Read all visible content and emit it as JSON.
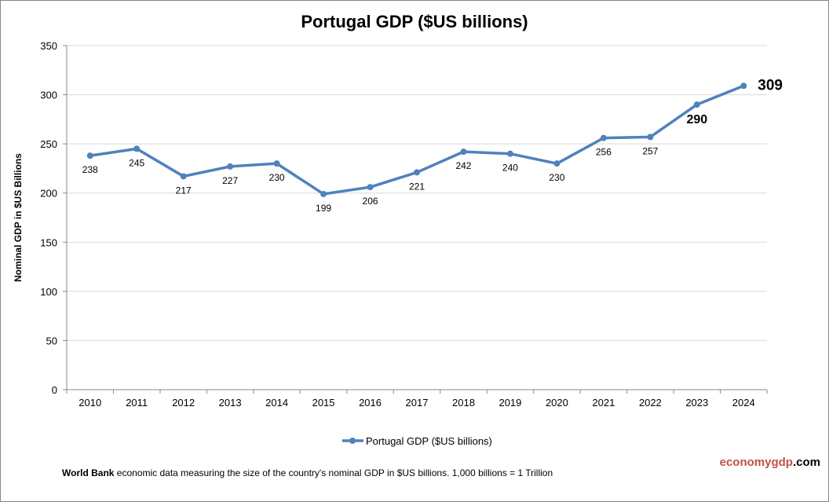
{
  "chart_data": {
    "type": "line",
    "title": "Portugal GDP ($US billions)",
    "ylabel": "Nominal GDP in $US  Billions",
    "xlabel": "",
    "categories": [
      "2010",
      "2011",
      "2012",
      "2013",
      "2014",
      "2015",
      "2016",
      "2017",
      "2018",
      "2019",
      "2020",
      "2021",
      "2022",
      "2023",
      "2024"
    ],
    "series": [
      {
        "name": "Portugal GDP ($US billions)",
        "values": [
          238,
          245,
          217,
          227,
          230,
          199,
          206,
          221,
          242,
          240,
          230,
          256,
          257,
          290,
          309
        ],
        "color": "#4f81bd"
      }
    ],
    "ylim": [
      0,
      350
    ],
    "yticks": [
      0,
      50,
      100,
      150,
      200,
      250,
      300,
      350
    ],
    "grid": true,
    "legend": "bottom"
  },
  "footer": {
    "source_bold": "World Bank",
    "source_text": " economic data  measuring the size of the country's nominal GDP in $US billions. 1,000 billions = 1 Trillion",
    "brand_a": "economy",
    "brand_b": "gdp",
    "brand_c": ".com",
    "brand_color": "#c0504d"
  }
}
